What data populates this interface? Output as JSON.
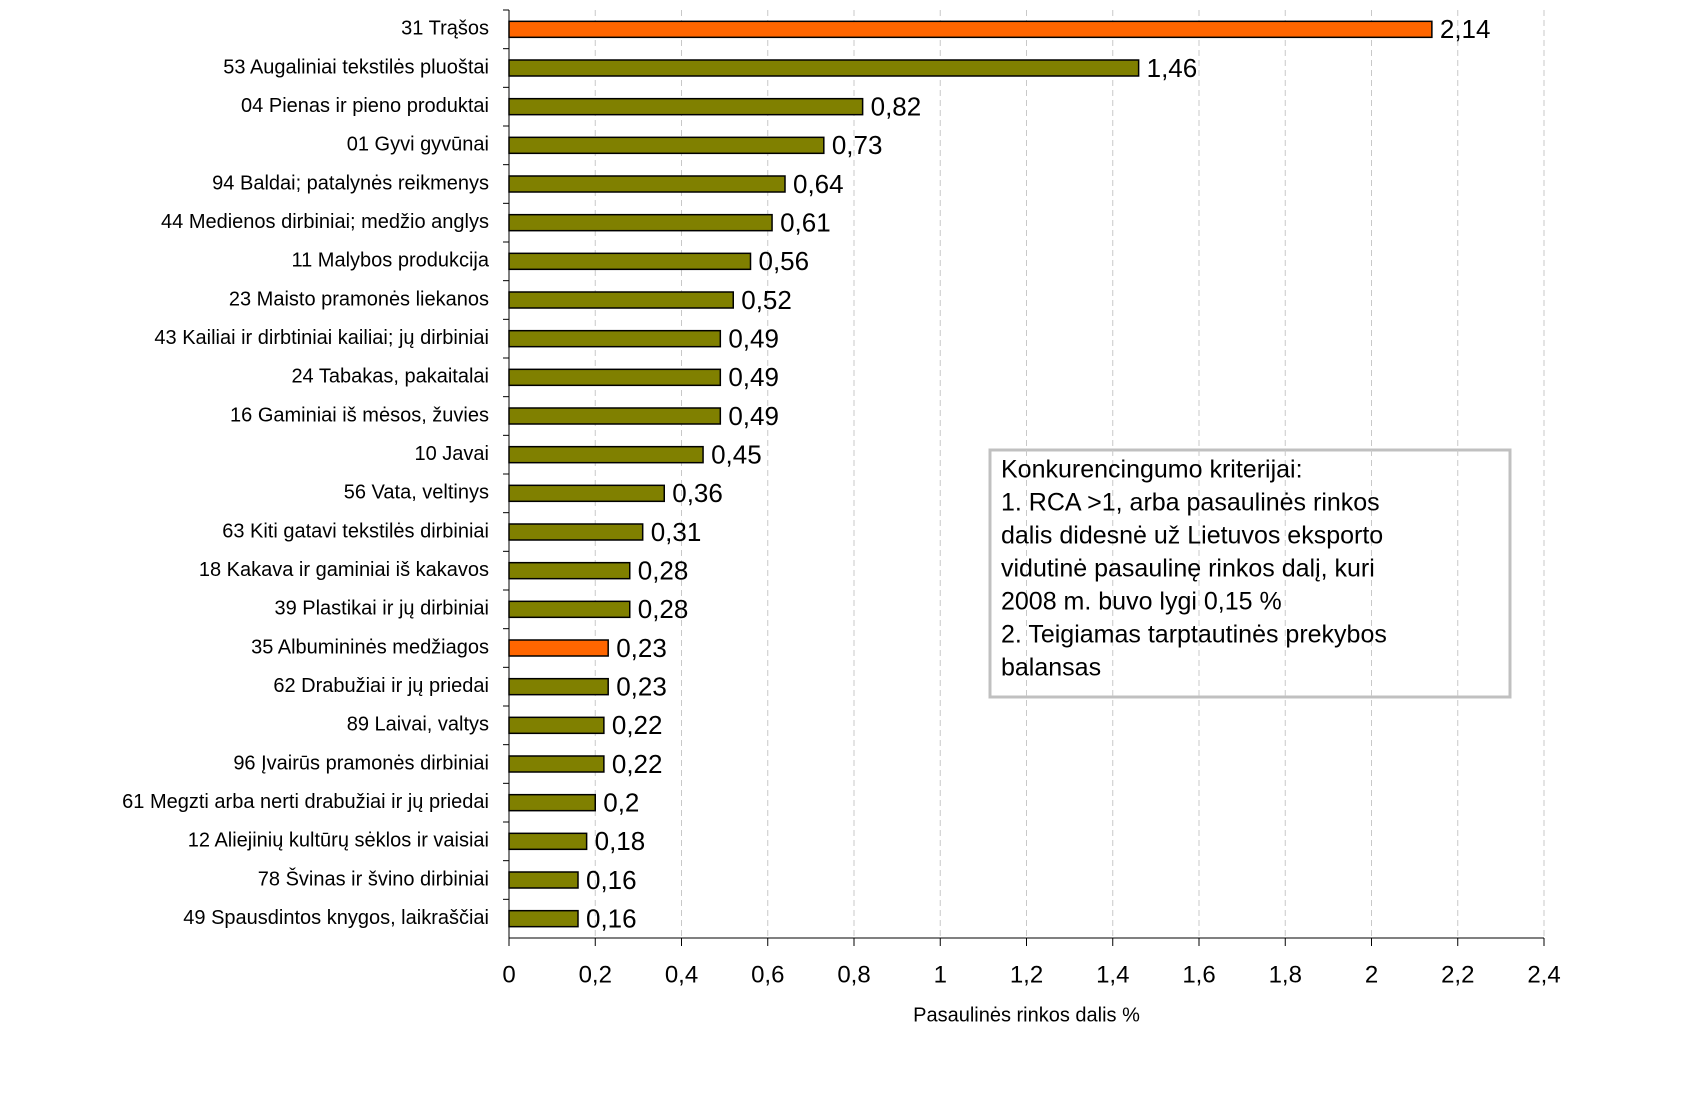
{
  "chart_data": {
    "type": "barh",
    "categories": [
      "31 Trąšos",
      "53 Augaliniai tekstilės pluoštai",
      "04 Pienas ir pieno produktai",
      "01 Gyvi gyvūnai",
      "94 Baldai; patalynės reikmenys",
      "44 Medienos dirbiniai; medžio anglys",
      "11 Malybos produkcija",
      "23 Maisto pramonės liekanos",
      "43 Kailiai ir dirbtiniai kailiai; jų dirbiniai",
      "24 Tabakas, pakaitalai",
      "16 Gaminiai iš mėsos, žuvies",
      "10 Javai",
      "56 Vata, veltinys",
      "63 Kiti gatavi tekstilės dirbiniai",
      "18 Kakava ir gaminiai iš kakavos",
      "39 Plastikai ir jų dirbiniai",
      "35 Albumininės medžiagos",
      "62 Drabužiai ir jų priedai",
      "89 Laivai, valtys",
      "96 Įvairūs pramonės dirbiniai",
      "61 Megzti arba nerti drabužiai ir jų priedai",
      "12 Aliejinių kultūrų sėklos ir vaisiai",
      "78 Švinas ir švino dirbiniai",
      "49 Spausdintos knygos, laikraščiai"
    ],
    "values": [
      2.14,
      1.46,
      0.82,
      0.73,
      0.64,
      0.61,
      0.56,
      0.52,
      0.49,
      0.49,
      0.49,
      0.45,
      0.36,
      0.31,
      0.28,
      0.28,
      0.23,
      0.23,
      0.22,
      0.22,
      0.2,
      0.18,
      0.16,
      0.16
    ],
    "value_labels": [
      "2,14",
      "1,46",
      "0,82",
      "0,73",
      "0,64",
      "0,61",
      "0,56",
      "0,52",
      "0,49",
      "0,49",
      "0,49",
      "0,45",
      "0,36",
      "0,31",
      "0,28",
      "0,28",
      "0,23",
      "0,23",
      "0,22",
      "0,22",
      "0,2",
      "0,18",
      "0,16",
      "0,16"
    ],
    "colors": [
      "#ff6600",
      "#808000",
      "#808000",
      "#808000",
      "#808000",
      "#808000",
      "#808000",
      "#808000",
      "#808000",
      "#808000",
      "#808000",
      "#808000",
      "#808000",
      "#808000",
      "#808000",
      "#808000",
      "#ff6600",
      "#808000",
      "#808000",
      "#808000",
      "#808000",
      "#808000",
      "#808000",
      "#808000"
    ],
    "xlabel": "Pasaulinės rinkos dalis %",
    "xlim": [
      0,
      2.4
    ],
    "xticks": [
      0,
      {
        "value": 0.2,
        "label": "0,2"
      },
      {
        "value": 0.4,
        "label": "0,4"
      },
      {
        "value": 0.6,
        "label": "0,6"
      },
      {
        "value": 0.8,
        "label": "0,8"
      },
      1,
      {
        "value": 1.2,
        "label": "1,2"
      },
      {
        "value": 1.4,
        "label": "1,4"
      },
      {
        "value": 1.6,
        "label": "1,6"
      },
      {
        "value": 1.8,
        "label": "1,8"
      },
      2,
      {
        "value": 2.2,
        "label": "2,2"
      },
      {
        "value": 2.4,
        "label": "2,4"
      }
    ],
    "grid": true,
    "annotation": [
      "Konkurencingumo kriterijai:",
      "1. RCA >1, arba pasaulinės rinkos",
      "dalis didesnė už Lietuvos eksporto",
      "vidutinė pasaulinę rinkos dalį, kuri",
      "2008 m. buvo lygi 0,15 %",
      "2. Teigiamas tarptautinės prekybos",
      "balansas"
    ]
  }
}
